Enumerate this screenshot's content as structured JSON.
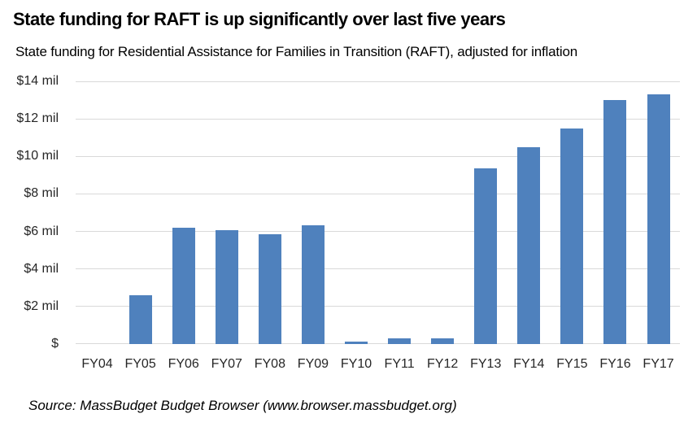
{
  "title": "State funding for RAFT is up significantly over last five years",
  "subtitle": "State funding for Residential Assistance for Families in Transition (RAFT), adjusted for inflation",
  "source": "Source: MassBudget Budget Browser (www.browser.massbudget.org)",
  "colors": {
    "bar": "#4F81BD",
    "gridline": "#D9D9D9",
    "text": "#000000",
    "tick_text": "#262626"
  },
  "chart_data": {
    "type": "bar",
    "title": "State funding for RAFT is up significantly over last five years",
    "subtitle": "State funding for Residential Assistance for Families in Transition (RAFT), adjusted for inflation",
    "categories": [
      "FY04",
      "FY05",
      "FY06",
      "FY07",
      "FY08",
      "FY09",
      "FY10",
      "FY11",
      "FY12",
      "FY13",
      "FY14",
      "FY15",
      "FY16",
      "FY17"
    ],
    "values": [
      0,
      2.6,
      6.2,
      6.05,
      5.85,
      6.35,
      0.15,
      0.3,
      0.3,
      9.35,
      10.5,
      11.5,
      13.0,
      13.3
    ],
    "xlabel": "",
    "ylabel": "",
    "ylim": [
      0,
      14
    ],
    "ytick_step": 2,
    "ytick_labels": [
      "$",
      "$2 mil",
      "$4 mil",
      "$6 mil",
      "$8 mil",
      "$10 mil",
      "$12 mil",
      "$14 mil"
    ],
    "grid": "horizontal",
    "legend": "none",
    "source_note": "Source: MassBudget Budget Browser (www.browser.massbudget.org)"
  }
}
